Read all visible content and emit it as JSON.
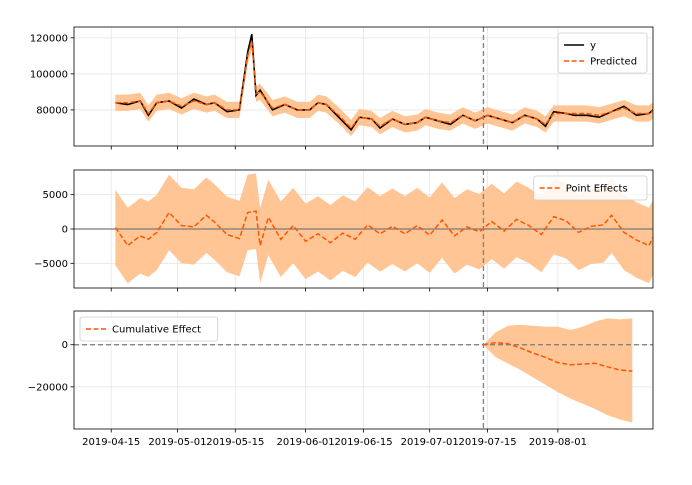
{
  "chart_data": [
    {
      "type": "line",
      "panel": "original",
      "ylim": [
        60000,
        126000
      ],
      "yticks": [
        80000,
        100000,
        120000
      ],
      "intervention_date": "2019-07-14",
      "legend": {
        "placement": "top-right",
        "entries": [
          "y",
          "Predicted"
        ]
      },
      "grid": true,
      "series": [
        {
          "name": "y",
          "color": "#000000",
          "style": "solid",
          "points": [
            [
              "2019-04-16",
              84000
            ],
            [
              "2019-04-19",
              83000
            ],
            [
              "2019-04-22",
              85000
            ],
            [
              "2019-04-24",
              77000
            ],
            [
              "2019-04-26",
              84000
            ],
            [
              "2019-04-29",
              85000
            ],
            [
              "2019-05-02",
              81000
            ],
            [
              "2019-05-05",
              86000
            ],
            [
              "2019-05-08",
              83000
            ],
            [
              "2019-05-10",
              84000
            ],
            [
              "2019-05-13",
              79000
            ],
            [
              "2019-05-16",
              80000
            ],
            [
              "2019-05-18",
              112000
            ],
            [
              "2019-05-19",
              122000
            ],
            [
              "2019-05-20",
              88000
            ],
            [
              "2019-05-21",
              91000
            ],
            [
              "2019-05-24",
              80000
            ],
            [
              "2019-05-27",
              83000
            ],
            [
              "2019-05-30",
              80000
            ],
            [
              "2019-06-02",
              80000
            ],
            [
              "2019-06-04",
              84000
            ],
            [
              "2019-06-06",
              83000
            ],
            [
              "2019-06-09",
              76000
            ],
            [
              "2019-06-12",
              69000
            ],
            [
              "2019-06-14",
              76000
            ],
            [
              "2019-06-17",
              75000
            ],
            [
              "2019-06-19",
              70000
            ],
            [
              "2019-06-22",
              75000
            ],
            [
              "2019-06-25",
              72000
            ],
            [
              "2019-06-28",
              73000
            ],
            [
              "2019-06-30",
              76000
            ],
            [
              "2019-07-03",
              74000
            ],
            [
              "2019-07-06",
              72000
            ],
            [
              "2019-07-09",
              77000
            ],
            [
              "2019-07-12",
              74000
            ],
            [
              "2019-07-15",
              77000
            ],
            [
              "2019-07-18",
              75000
            ],
            [
              "2019-07-21",
              73000
            ],
            [
              "2019-07-24",
              77000
            ],
            [
              "2019-07-27",
              75000
            ],
            [
              "2019-07-29",
              71000
            ],
            [
              "2019-07-31",
              79000
            ],
            [
              "2019-08-03",
              78000
            ],
            [
              "2019-08-05",
              77000
            ],
            [
              "2019-08-08",
              77000
            ],
            [
              "2019-08-11",
              76000
            ],
            [
              "2019-08-14",
              79000
            ],
            [
              "2019-08-17",
              82000
            ],
            [
              "2019-08-20",
              77000
            ],
            [
              "2019-08-23",
              78000
            ],
            [
              "2019-08-26",
              84000
            ],
            [
              "2019-08-29",
              75000
            ]
          ]
        },
        {
          "name": "Predicted",
          "color": "#ff5500",
          "style": "dashed",
          "points": [
            [
              "2019-04-16",
              84000
            ],
            [
              "2019-04-19",
              84000
            ],
            [
              "2019-04-22",
              85000
            ],
            [
              "2019-04-24",
              78000
            ],
            [
              "2019-04-26",
              84000
            ],
            [
              "2019-04-29",
              85000
            ],
            [
              "2019-05-02",
              82000
            ],
            [
              "2019-05-05",
              85000
            ],
            [
              "2019-05-08",
              83000
            ],
            [
              "2019-05-10",
              84000
            ],
            [
              "2019-05-13",
              80000
            ],
            [
              "2019-05-16",
              80000
            ],
            [
              "2019-05-18",
              110000
            ],
            [
              "2019-05-19",
              118000
            ],
            [
              "2019-05-20",
              89000
            ],
            [
              "2019-05-21",
              90000
            ],
            [
              "2019-05-24",
              81000
            ],
            [
              "2019-05-27",
              83000
            ],
            [
              "2019-05-30",
              80000
            ],
            [
              "2019-06-02",
              80000
            ],
            [
              "2019-06-04",
              84000
            ],
            [
              "2019-06-06",
              83000
            ],
            [
              "2019-06-09",
              77000
            ],
            [
              "2019-06-12",
              70000
            ],
            [
              "2019-06-14",
              76000
            ],
            [
              "2019-06-17",
              75000
            ],
            [
              "2019-06-19",
              71000
            ],
            [
              "2019-06-22",
              75000
            ],
            [
              "2019-06-25",
              72000
            ],
            [
              "2019-06-28",
              73000
            ],
            [
              "2019-06-30",
              76000
            ],
            [
              "2019-07-03",
              74000
            ],
            [
              "2019-07-06",
              73000
            ],
            [
              "2019-07-09",
              77000
            ],
            [
              "2019-07-12",
              74000
            ],
            [
              "2019-07-15",
              77000
            ],
            [
              "2019-07-18",
              75000
            ],
            [
              "2019-07-21",
              73000
            ],
            [
              "2019-07-24",
              77000
            ],
            [
              "2019-07-27",
              75000
            ],
            [
              "2019-07-29",
              72000
            ],
            [
              "2019-07-31",
              78000
            ],
            [
              "2019-08-03",
              78000
            ],
            [
              "2019-08-05",
              78000
            ],
            [
              "2019-08-08",
              78000
            ],
            [
              "2019-08-11",
              77000
            ],
            [
              "2019-08-14",
              79000
            ],
            [
              "2019-08-17",
              81000
            ],
            [
              "2019-08-20",
              78000
            ],
            [
              "2019-08-23",
              78000
            ],
            [
              "2019-08-26",
              83000
            ],
            [
              "2019-08-29",
              76000
            ]
          ]
        }
      ],
      "band": {
        "color": "#ffbf8a",
        "halfwidth": 4500
      }
    },
    {
      "type": "line",
      "panel": "pointwise",
      "ylim": [
        -8600,
        8600
      ],
      "yticks": [
        -5000,
        0,
        5000
      ],
      "legend": {
        "placement": "top-right",
        "entries": [
          "Point Effects"
        ]
      },
      "grid": true,
      "series": [
        {
          "name": "Point Effects",
          "color": "#ff5500",
          "style": "dashed",
          "points": [
            [
              "2019-04-16",
              200
            ],
            [
              "2019-04-19",
              -2400
            ],
            [
              "2019-04-22",
              -1000
            ],
            [
              "2019-04-24",
              -1500
            ],
            [
              "2019-04-26",
              -500
            ],
            [
              "2019-04-29",
              2400
            ],
            [
              "2019-05-02",
              500
            ],
            [
              "2019-05-05",
              300
            ],
            [
              "2019-05-08",
              2000
            ],
            [
              "2019-05-10",
              1000
            ],
            [
              "2019-05-13",
              -800
            ],
            [
              "2019-05-16",
              -1400
            ],
            [
              "2019-05-18",
              2400
            ],
            [
              "2019-05-20",
              2600
            ],
            [
              "2019-05-21",
              -2400
            ],
            [
              "2019-05-23",
              1700
            ],
            [
              "2019-05-26",
              -1500
            ],
            [
              "2019-05-29",
              500
            ],
            [
              "2019-06-01",
              -1800
            ],
            [
              "2019-06-04",
              -700
            ],
            [
              "2019-06-07",
              -2000
            ],
            [
              "2019-06-10",
              -600
            ],
            [
              "2019-06-13",
              -1500
            ],
            [
              "2019-06-16",
              600
            ],
            [
              "2019-06-19",
              -700
            ],
            [
              "2019-06-22",
              400
            ],
            [
              "2019-06-25",
              -700
            ],
            [
              "2019-06-28",
              500
            ],
            [
              "2019-07-01",
              -900
            ],
            [
              "2019-07-04",
              1300
            ],
            [
              "2019-07-07",
              -1000
            ],
            [
              "2019-07-10",
              300
            ],
            [
              "2019-07-13",
              -400
            ],
            [
              "2019-07-16",
              1100
            ],
            [
              "2019-07-19",
              -300
            ],
            [
              "2019-07-22",
              1400
            ],
            [
              "2019-07-25",
              500
            ],
            [
              "2019-07-28",
              -800
            ],
            [
              "2019-07-31",
              1800
            ],
            [
              "2019-08-03",
              1200
            ],
            [
              "2019-08-06",
              -500
            ],
            [
              "2019-08-09",
              400
            ],
            [
              "2019-08-12",
              600
            ],
            [
              "2019-08-14",
              2000
            ],
            [
              "2019-08-17",
              -500
            ],
            [
              "2019-08-20",
              -1600
            ],
            [
              "2019-08-23",
              -2400
            ],
            [
              "2019-08-26",
              1000
            ],
            [
              "2019-08-28",
              -900
            ],
            [
              "2019-08-31",
              -500
            ]
          ]
        }
      ],
      "band": {
        "color": "#ffbf8a",
        "halfwidth": 5500
      }
    },
    {
      "type": "line",
      "panel": "cumulative",
      "ylim": [
        -40000,
        16000
      ],
      "yticks": [
        -20000,
        0
      ],
      "legend": {
        "placement": "top-left",
        "entries": [
          "Cumulative Effect"
        ]
      },
      "grid": true,
      "series": [
        {
          "name": "Cumulative Effect",
          "color": "#ff5500",
          "style": "dashed",
          "points": [
            [
              "2019-07-14",
              0
            ],
            [
              "2019-07-17",
              1000
            ],
            [
              "2019-07-20",
              400
            ],
            [
              "2019-07-23",
              -1600
            ],
            [
              "2019-07-26",
              -4000
            ],
            [
              "2019-07-29",
              -6000
            ],
            [
              "2019-08-01",
              -8500
            ],
            [
              "2019-08-04",
              -9500
            ],
            [
              "2019-08-07",
              -9200
            ],
            [
              "2019-08-10",
              -8800
            ],
            [
              "2019-08-13",
              -10500
            ],
            [
              "2019-08-16",
              -12000
            ],
            [
              "2019-08-19",
              -12500
            ]
          ]
        }
      ],
      "band": {
        "color": "#ffbf8a",
        "upper": [
          [
            "2019-07-14",
            0
          ],
          [
            "2019-07-17",
            6000
          ],
          [
            "2019-07-20",
            9000
          ],
          [
            "2019-07-23",
            9500
          ],
          [
            "2019-07-26",
            9000
          ],
          [
            "2019-07-29",
            8500
          ],
          [
            "2019-08-01",
            8500
          ],
          [
            "2019-08-04",
            7000
          ],
          [
            "2019-08-07",
            8500
          ],
          [
            "2019-08-10",
            11000
          ],
          [
            "2019-08-13",
            12500
          ],
          [
            "2019-08-16",
            12000
          ],
          [
            "2019-08-19",
            12500
          ]
        ],
        "lower": [
          [
            "2019-07-14",
            0
          ],
          [
            "2019-07-17",
            -6000
          ],
          [
            "2019-07-20",
            -9000
          ],
          [
            "2019-07-23",
            -12000
          ],
          [
            "2019-07-26",
            -15500
          ],
          [
            "2019-07-29",
            -19000
          ],
          [
            "2019-08-01",
            -22500
          ],
          [
            "2019-08-04",
            -25500
          ],
          [
            "2019-08-07",
            -28000
          ],
          [
            "2019-08-10",
            -30500
          ],
          [
            "2019-08-13",
            -33500
          ],
          [
            "2019-08-16",
            -35500
          ],
          [
            "2019-08-19",
            -37000
          ]
        ]
      }
    }
  ],
  "x_axis": {
    "range": [
      "2019-04-06",
      "2019-08-24"
    ],
    "tick_values": [
      "2019-04-15",
      "2019-05-01",
      "2019-05-15",
      "2019-06-01",
      "2019-06-15",
      "2019-07-01",
      "2019-07-15",
      "2019-08-01"
    ],
    "tick_labels": [
      "2019-04-15",
      "2019-05-01",
      "2019-05-15",
      "2019-06-01",
      "2019-06-15",
      "2019-07-01",
      "2019-07-15",
      "2019-08-01"
    ]
  }
}
